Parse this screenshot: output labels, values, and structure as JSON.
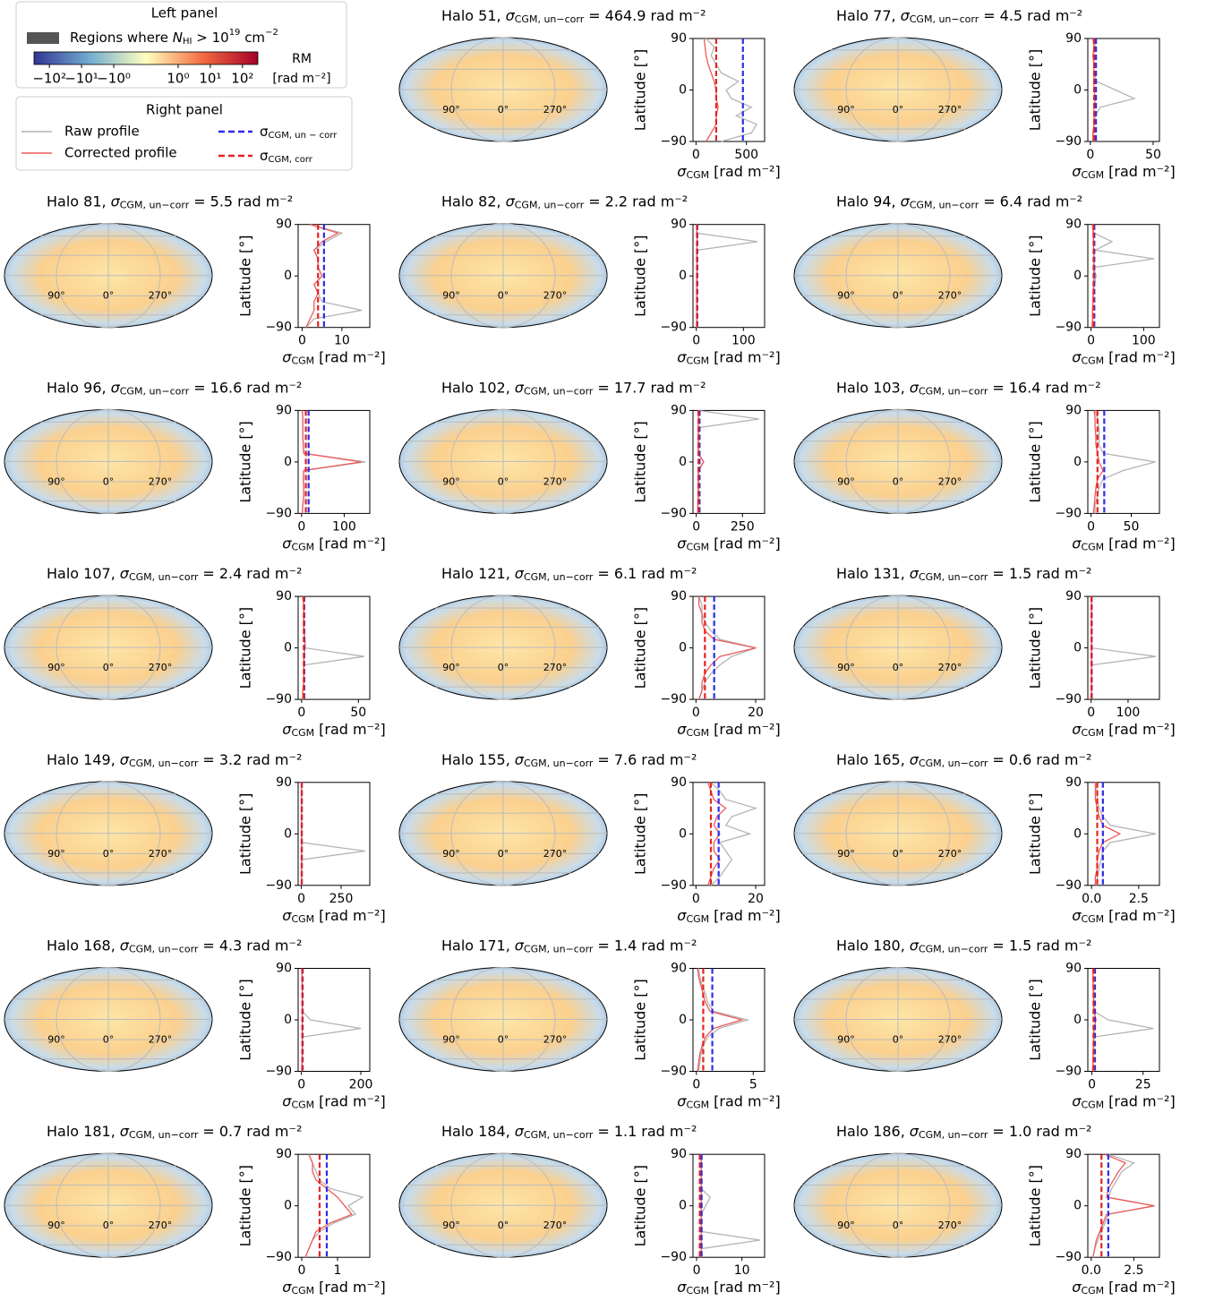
{
  "labels": {
    "title_sep": ",",
    "sigma": "σ",
    "uncorr_sub": "CGM, un−corr",
    "eq": "=",
    "unit": "rad m⁻²",
    "xlabel_sub": "CGM",
    "xlabel_unit": "[rad m⁻²]",
    "ylabel": "Latitude [°]"
  },
  "map_labels": [
    "90°",
    "0°",
    "270°"
  ],
  "legend": {
    "left_title": "Left panel",
    "region": [
      "Regions where ",
      "N",
      "HI",
      " > 10",
      "19",
      " cm",
      "−2"
    ],
    "region_color": "#555555",
    "colorbar": {
      "label": "RM",
      "unit": "[rad m⁻²]",
      "lim": [
        -300,
        300
      ],
      "ticks": [
        {
          "value": -100,
          "label": "−10²"
        },
        {
          "value": -10,
          "label": "−10¹"
        },
        {
          "value": -1,
          "label": "−10⁰"
        },
        {
          "value": 1,
          "label": "10⁰"
        },
        {
          "value": 10,
          "label": "10¹"
        },
        {
          "value": 100,
          "label": "10²"
        }
      ]
    },
    "right_title": "Right panel",
    "series": [
      {
        "name": "Raw profile",
        "color": "#b4b4b4"
      },
      {
        "name": "Corrected profile",
        "color": "#ef5a5a"
      }
    ],
    "lines": [
      {
        "sub": "CGM, un − corr",
        "color": "#2b2bee"
      },
      {
        "sub": "CGM, corr",
        "color": "#e52222"
      }
    ]
  },
  "profile": {
    "lat": [
      -90,
      -75,
      -60,
      -45,
      -30,
      -15,
      0,
      15,
      30,
      45,
      60,
      75,
      90
    ],
    "ylim": [
      -90,
      90
    ],
    "yticks": [
      {
        "value": -90,
        "label": "−90"
      },
      0,
      90
    ]
  },
  "chart_data": [
    {
      "type": "profile",
      "title": "Halo 51",
      "sigma_uncorr": 464.9,
      "sigma_corr": 200,
      "xlim": [
        -30,
        680
      ],
      "xticks": [
        0,
        500
      ],
      "raw": [
        250,
        550,
        600,
        400,
        550,
        350,
        300,
        420,
        250,
        200,
        150,
        180,
        100
      ],
      "corr": [
        100,
        150,
        200,
        200,
        220,
        200,
        200,
        180,
        150,
        120,
        100,
        90,
        80
      ]
    },
    {
      "type": "profile",
      "title": "Halo 77",
      "sigma_uncorr": 4.5,
      "sigma_corr": 3,
      "xlim": [
        -2,
        55
      ],
      "xticks": [
        0,
        50
      ],
      "raw": [
        2,
        3,
        3,
        4,
        8,
        35,
        20,
        5,
        3,
        3,
        3,
        4,
        3
      ],
      "corr": [
        2,
        2,
        3,
        3,
        3,
        4,
        3,
        3,
        3,
        3,
        2,
        3,
        2
      ]
    },
    {
      "type": "profile",
      "title": "Halo 81",
      "sigma_uncorr": 5.5,
      "sigma_corr": 4,
      "xlim": [
        -1,
        17
      ],
      "xticks": [
        0,
        10
      ],
      "raw": [
        1,
        3,
        15,
        5,
        4,
        3,
        5,
        4,
        4,
        3,
        6,
        10,
        2
      ],
      "corr": [
        1,
        2,
        3,
        3,
        4,
        3,
        5,
        4,
        4,
        3,
        5,
        9,
        2
      ]
    },
    {
      "type": "profile",
      "title": "Halo 82",
      "sigma_uncorr": 2.2,
      "sigma_corr": 1.5,
      "xlim": [
        -7,
        145
      ],
      "xticks": [
        0,
        100
      ],
      "raw": [
        1,
        1,
        1,
        1,
        1,
        1,
        1,
        2,
        1,
        1,
        130,
        1,
        1
      ],
      "corr": [
        1,
        1,
        1,
        1,
        1,
        1,
        1,
        2,
        1,
        1,
        2,
        1,
        1
      ]
    },
    {
      "type": "profile",
      "title": "Halo 94",
      "sigma_uncorr": 6.4,
      "sigma_corr": 5,
      "xlim": [
        -6,
        130
      ],
      "xticks": [
        0,
        100
      ],
      "raw": [
        2,
        3,
        3,
        4,
        5,
        6,
        10,
        5,
        120,
        8,
        40,
        6,
        3
      ],
      "corr": [
        2,
        3,
        3,
        4,
        4,
        5,
        6,
        5,
        6,
        5,
        5,
        4,
        3
      ]
    },
    {
      "type": "profile",
      "title": "Halo 96",
      "sigma_uncorr": 16.6,
      "sigma_corr": 10,
      "xlim": [
        -8,
        160
      ],
      "xticks": [
        0,
        100
      ],
      "raw": [
        2,
        3,
        5,
        5,
        4,
        5,
        150,
        5,
        4,
        3,
        3,
        3,
        2
      ],
      "corr": [
        2,
        3,
        5,
        5,
        4,
        5,
        140,
        5,
        4,
        3,
        3,
        3,
        2
      ]
    },
    {
      "type": "profile",
      "title": "Halo 102",
      "sigma_uncorr": 17.7,
      "sigma_corr": 12,
      "xlim": [
        -18,
        370
      ],
      "xticks": [
        0,
        250
      ],
      "raw": [
        10,
        10,
        12,
        12,
        12,
        12,
        40,
        12,
        12,
        12,
        12,
        340,
        10
      ],
      "corr": [
        8,
        8,
        10,
        10,
        10,
        10,
        40,
        10,
        10,
        10,
        10,
        12,
        8
      ]
    },
    {
      "type": "profile",
      "title": "Halo 103",
      "sigma_uncorr": 16.4,
      "sigma_corr": 8,
      "xlim": [
        -4,
        85
      ],
      "xticks": [
        0,
        50
      ],
      "raw": [
        5,
        5,
        8,
        10,
        15,
        40,
        80,
        15,
        10,
        10,
        10,
        8,
        5
      ],
      "corr": [
        3,
        4,
        5,
        6,
        8,
        15,
        10,
        8,
        6,
        6,
        5,
        5,
        4
      ]
    },
    {
      "type": "profile",
      "title": "Halo 107",
      "sigma_uncorr": 2.4,
      "sigma_corr": 2,
      "xlim": [
        -3,
        60
      ],
      "xticks": [
        0,
        50
      ],
      "raw": [
        1,
        1,
        2,
        2,
        2,
        55,
        3,
        3,
        2,
        2,
        2,
        2,
        1
      ],
      "corr": [
        1,
        1,
        2,
        2,
        2,
        2,
        3,
        3,
        2,
        2,
        2,
        2,
        1
      ]
    },
    {
      "type": "profile",
      "title": "Halo 121",
      "sigma_uncorr": 6.1,
      "sigma_corr": 3,
      "xlim": [
        -1,
        23
      ],
      "xticks": [
        0,
        20
      ],
      "raw": [
        1,
        2,
        3,
        5,
        8,
        12,
        20,
        8,
        5,
        3,
        2,
        2,
        1
      ],
      "corr": [
        1,
        2,
        2,
        3,
        5,
        8,
        20,
        6,
        3,
        2,
        2,
        1,
        1
      ]
    },
    {
      "type": "profile",
      "title": "Halo 131",
      "sigma_uncorr": 1.5,
      "sigma_corr": 1,
      "xlim": [
        -9,
        185
      ],
      "xticks": [
        0,
        100
      ],
      "raw": [
        1,
        1,
        1,
        1,
        1,
        175,
        1,
        1,
        1,
        1,
        1,
        1,
        1
      ],
      "corr": [
        1,
        1,
        1,
        1,
        1,
        1,
        1,
        1,
        1,
        1,
        1,
        1,
        1
      ]
    },
    {
      "type": "profile",
      "title": "Halo 149",
      "sigma_uncorr": 3.2,
      "sigma_corr": 2,
      "xlim": [
        -20,
        430
      ],
      "xticks": [
        0,
        250
      ],
      "raw": [
        2,
        2,
        2,
        2,
        400,
        2,
        2,
        2,
        2,
        2,
        2,
        2,
        2
      ],
      "corr": [
        2,
        2,
        2,
        2,
        2,
        2,
        2,
        2,
        2,
        2,
        2,
        2,
        2
      ]
    },
    {
      "type": "profile",
      "title": "Halo 155",
      "sigma_uncorr": 7.6,
      "sigma_corr": 5,
      "xlim": [
        -1,
        23
      ],
      "xticks": [
        0,
        20
      ],
      "raw": [
        5,
        8,
        10,
        12,
        10,
        8,
        18,
        10,
        12,
        20,
        10,
        8,
        5
      ],
      "corr": [
        4,
        5,
        6,
        8,
        6,
        6,
        8,
        6,
        7,
        10,
        6,
        5,
        4
      ]
    },
    {
      "type": "profile",
      "title": "Halo 165",
      "sigma_uncorr": 0.6,
      "sigma_corr": 0.3,
      "xlim": [
        -0.2,
        3.6
      ],
      "xticks": [
        {
          "value": 0,
          "label": "0.0"
        },
        2.5
      ],
      "raw": [
        0.3,
        0.3,
        0.4,
        0.5,
        0.6,
        1.0,
        3.4,
        1.0,
        0.6,
        0.4,
        0.3,
        0.3,
        0.2
      ],
      "corr": [
        0.2,
        0.2,
        0.3,
        0.3,
        0.4,
        0.6,
        1.5,
        0.6,
        0.4,
        0.3,
        0.2,
        0.2,
        0.2
      ]
    },
    {
      "type": "profile",
      "title": "Halo 168",
      "sigma_uncorr": 4.3,
      "sigma_corr": 3,
      "xlim": [
        -11,
        230
      ],
      "xticks": [
        0,
        200
      ],
      "raw": [
        1,
        2,
        3,
        3,
        3,
        200,
        30,
        3,
        3,
        3,
        3,
        2,
        1
      ],
      "corr": [
        1,
        2,
        3,
        3,
        3,
        3,
        3,
        3,
        3,
        3,
        3,
        2,
        1
      ]
    },
    {
      "type": "profile",
      "title": "Halo 171",
      "sigma_uncorr": 1.4,
      "sigma_corr": 0.6,
      "xlim": [
        -0.3,
        6
      ],
      "xticks": [
        0,
        5
      ],
      "raw": [
        0.2,
        0.3,
        0.4,
        0.6,
        1,
        2,
        4.5,
        1.5,
        1,
        0.8,
        0.5,
        0.3,
        0.2
      ],
      "corr": [
        0.1,
        0.2,
        0.3,
        0.5,
        0.8,
        1.5,
        4,
        1.2,
        0.8,
        0.6,
        0.4,
        0.2,
        0.1
      ]
    },
    {
      "type": "profile",
      "title": "Halo 180",
      "sigma_uncorr": 1.5,
      "sigma_corr": 0.8,
      "xlim": [
        -2,
        33
      ],
      "xticks": [
        0,
        25
      ],
      "raw": [
        0.5,
        0.6,
        0.8,
        1,
        1,
        30,
        8,
        1,
        1,
        1,
        0.8,
        0.6,
        0.5
      ],
      "corr": [
        0.3,
        0.5,
        0.6,
        0.8,
        0.9,
        1,
        2,
        1,
        0.9,
        0.8,
        0.6,
        0.5,
        0.4
      ]
    },
    {
      "type": "profile",
      "title": "Halo 181",
      "sigma_uncorr": 0.7,
      "sigma_corr": 0.5,
      "xlim": [
        -0.1,
        1.9
      ],
      "xticks": [
        0,
        1
      ],
      "raw": [
        0.1,
        0.2,
        0.3,
        0.5,
        0.9,
        1.5,
        1.3,
        1.7,
        0.8,
        0.5,
        0.4,
        0.3,
        0.2
      ],
      "corr": [
        0.1,
        0.2,
        0.3,
        0.4,
        0.8,
        1.4,
        1.2,
        1.0,
        0.7,
        0.4,
        0.3,
        0.3,
        0.2
      ]
    },
    {
      "type": "profile",
      "title": "Halo 184",
      "sigma_uncorr": 1.1,
      "sigma_corr": 0.7,
      "xlim": [
        -0.8,
        15
      ],
      "xticks": [
        0,
        10
      ],
      "raw": [
        1,
        1,
        14,
        1,
        1,
        1,
        2,
        3,
        1,
        1,
        1,
        1,
        1
      ],
      "corr": [
        1,
        1,
        1,
        1,
        1,
        1,
        1,
        1,
        1,
        1,
        1,
        1,
        1
      ]
    },
    {
      "type": "profile",
      "title": "Halo 186",
      "sigma_uncorr": {
        "value": 1.0,
        "label": "1.0"
      },
      "sigma_corr": 0.6,
      "xlim": [
        -0.2,
        4
      ],
      "xticks": [
        {
          "value": 0,
          "label": "0.0"
        },
        2.5
      ],
      "raw": [
        0.1,
        0.2,
        0.4,
        0.6,
        0.8,
        1,
        3.7,
        1,
        1.2,
        1.5,
        1.8,
        2.5,
        1
      ],
      "corr": [
        0.1,
        0.2,
        0.3,
        0.5,
        0.7,
        0.9,
        3.7,
        0.9,
        1,
        1.3,
        1.6,
        2,
        0.8
      ]
    }
  ]
}
